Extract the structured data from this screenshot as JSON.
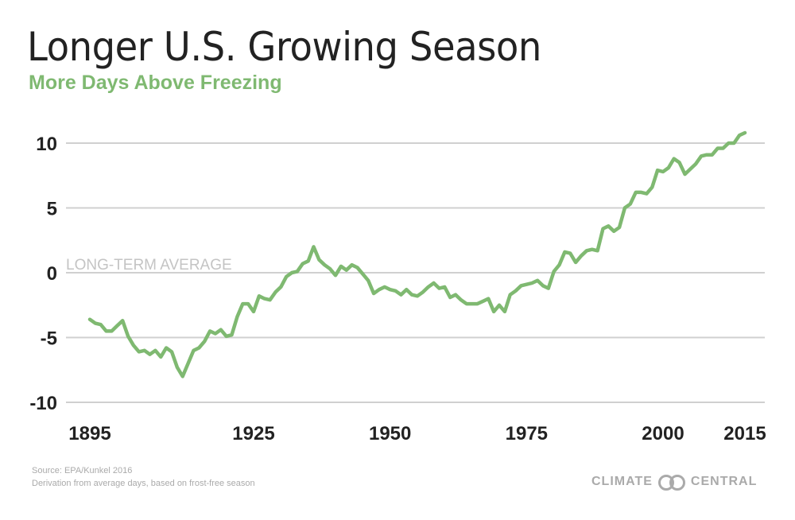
{
  "title": "Longer U.S. Growing Season",
  "subtitle": "More Days Above Freezing",
  "source": "Source: EPA/Kunkel 2016",
  "note": "Derivation from average days, based on frost-free season",
  "logo": {
    "left": "CLIMATE",
    "right": "CENTRAL"
  },
  "colors": {
    "line": "#7fb971",
    "grid": "#d0d0d0",
    "subtitle": "#7fb971"
  },
  "chart_data": {
    "type": "line",
    "title": "Longer U.S. Growing Season",
    "subtitle": "More Days Above Freezing",
    "xlabel": "",
    "ylabel": "",
    "xlim": [
      1895,
      2015
    ],
    "ylim": [
      -10,
      10
    ],
    "grid": true,
    "yticks": [
      "10",
      "5",
      "0",
      "-5",
      "-10"
    ],
    "ytick_values": [
      10,
      5,
      0,
      -5,
      -10
    ],
    "xticks": [
      "1895",
      "1925",
      "1950",
      "1975",
      "2000",
      "2015"
    ],
    "xtick_values": [
      1895,
      1925,
      1950,
      1975,
      2000,
      2015
    ],
    "annotation": "LONG-TERM AVERAGE",
    "x_start": 1895,
    "values": [
      -3.6,
      -3.9,
      -4.0,
      -4.5,
      -4.5,
      -4.1,
      -3.7,
      -4.9,
      -5.6,
      -6.1,
      -6.0,
      -6.3,
      -6.0,
      -6.5,
      -5.8,
      -6.1,
      -7.3,
      -8.0,
      -7.0,
      -6.0,
      -5.8,
      -5.3,
      -4.5,
      -4.7,
      -4.4,
      -4.9,
      -4.8,
      -3.4,
      -2.4,
      -2.4,
      -3.0,
      -1.8,
      -2.0,
      -2.1,
      -1.5,
      -1.1,
      -0.3,
      0.0,
      0.1,
      0.7,
      0.9,
      2.0,
      1.0,
      0.6,
      0.3,
      -0.2,
      0.5,
      0.2,
      0.6,
      0.4,
      -0.1,
      -0.6,
      -1.6,
      -1.3,
      -1.1,
      -1.3,
      -1.4,
      -1.7,
      -1.3,
      -1.7,
      -1.8,
      -1.5,
      -1.1,
      -0.8,
      -1.2,
      -1.1,
      -1.9,
      -1.7,
      -2.1,
      -2.4,
      -2.4,
      -2.4,
      -2.2,
      -2.0,
      -3.0,
      -2.5,
      -3.0,
      -1.7,
      -1.4,
      -1.0,
      -0.9,
      -0.8,
      -0.6,
      -1.0,
      -1.2,
      0.1,
      0.6,
      1.6,
      1.5,
      0.8,
      1.3,
      1.7,
      1.8,
      1.7,
      3.4,
      3.6,
      3.2,
      3.5,
      5.0,
      5.3,
      6.2,
      6.2,
      6.1,
      6.6,
      7.9,
      7.8,
      8.1,
      8.8,
      8.5,
      7.6,
      8.0,
      8.4,
      9.0,
      9.1,
      9.1,
      9.6,
      9.6,
      10.0,
      10.0,
      10.6,
      10.8
    ]
  }
}
